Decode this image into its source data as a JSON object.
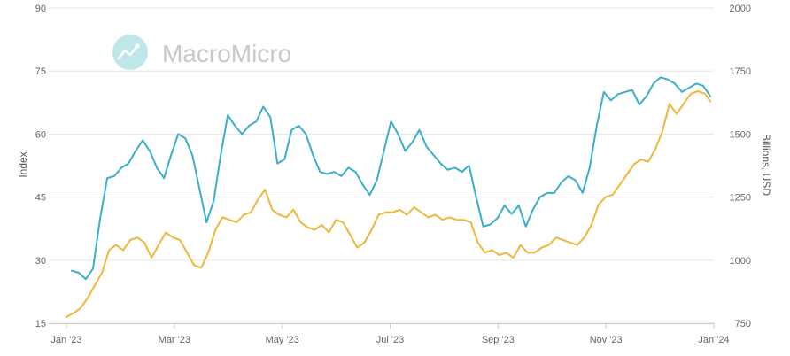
{
  "watermark": {
    "text": "MacroMicro",
    "icon": "macromicro-logo-icon"
  },
  "colors": {
    "series_a": "#3aaecd",
    "series_b": "#f0b63d",
    "grid": "#e6e6e6",
    "axis": "#cccccc",
    "watermark_circle": "#bfe7ea"
  },
  "chart_data": {
    "type": "line",
    "x_ticks": [
      "Jan '23",
      "Mar '23",
      "May '23",
      "Jul '23",
      "Sep '23",
      "Nov '23",
      "Jan '24"
    ],
    "xlim": [
      "2023-01-01",
      "2024-01-01"
    ],
    "y_left": {
      "label": "Index",
      "ticks": [
        15,
        30,
        45,
        60,
        75,
        90
      ],
      "ylim": [
        15,
        90
      ]
    },
    "y_right": {
      "label": "Billions, USD",
      "ticks": [
        750,
        1000,
        1250,
        1500,
        1750,
        2000
      ],
      "ylim": [
        750,
        2000
      ]
    },
    "grid": true,
    "series": [
      {
        "axis": "left",
        "color": "#3aaecd",
        "points": [
          [
            "2023-01-04",
            27.5
          ],
          [
            "2023-01-08",
            27
          ],
          [
            "2023-01-12",
            25.5
          ],
          [
            "2023-01-16",
            28
          ],
          [
            "2023-01-20",
            40
          ],
          [
            "2023-01-24",
            49.5
          ],
          [
            "2023-01-28",
            50
          ],
          [
            "2023-02-01",
            52
          ],
          [
            "2023-02-05",
            53
          ],
          [
            "2023-02-09",
            56
          ],
          [
            "2023-02-13",
            58.5
          ],
          [
            "2023-02-17",
            56
          ],
          [
            "2023-02-21",
            52
          ],
          [
            "2023-02-25",
            49.5
          ],
          [
            "2023-03-01",
            55
          ],
          [
            "2023-03-05",
            60
          ],
          [
            "2023-03-09",
            59
          ],
          [
            "2023-03-13",
            55
          ],
          [
            "2023-03-17",
            47
          ],
          [
            "2023-03-21",
            39
          ],
          [
            "2023-03-25",
            44
          ],
          [
            "2023-03-29",
            55
          ],
          [
            "2023-04-02",
            64.5
          ],
          [
            "2023-04-06",
            62
          ],
          [
            "2023-04-10",
            60
          ],
          [
            "2023-04-14",
            62
          ],
          [
            "2023-04-18",
            63
          ],
          [
            "2023-04-22",
            66.5
          ],
          [
            "2023-04-26",
            64
          ],
          [
            "2023-04-30",
            53
          ],
          [
            "2023-05-04",
            54
          ],
          [
            "2023-05-08",
            61
          ],
          [
            "2023-05-12",
            62
          ],
          [
            "2023-05-16",
            60
          ],
          [
            "2023-05-20",
            55
          ],
          [
            "2023-05-24",
            51
          ],
          [
            "2023-05-28",
            50.5
          ],
          [
            "2023-06-01",
            51
          ],
          [
            "2023-06-05",
            50
          ],
          [
            "2023-06-09",
            52
          ],
          [
            "2023-06-13",
            51
          ],
          [
            "2023-06-17",
            48
          ],
          [
            "2023-06-21",
            45.5
          ],
          [
            "2023-06-25",
            49
          ],
          [
            "2023-06-29",
            56
          ],
          [
            "2023-07-03",
            63
          ],
          [
            "2023-07-07",
            60
          ],
          [
            "2023-07-11",
            56
          ],
          [
            "2023-07-15",
            58
          ],
          [
            "2023-07-19",
            61
          ],
          [
            "2023-07-23",
            57
          ],
          [
            "2023-07-27",
            55
          ],
          [
            "2023-07-31",
            53
          ],
          [
            "2023-08-04",
            51.5
          ],
          [
            "2023-08-08",
            52
          ],
          [
            "2023-08-12",
            51
          ],
          [
            "2023-08-16",
            52.5
          ],
          [
            "2023-08-20",
            45
          ],
          [
            "2023-08-24",
            38
          ],
          [
            "2023-08-28",
            38.5
          ],
          [
            "2023-09-01",
            40
          ],
          [
            "2023-09-05",
            43
          ],
          [
            "2023-09-09",
            41
          ],
          [
            "2023-09-13",
            43
          ],
          [
            "2023-09-17",
            38
          ],
          [
            "2023-09-21",
            42
          ],
          [
            "2023-09-25",
            45
          ],
          [
            "2023-09-29",
            46
          ],
          [
            "2023-10-03",
            46
          ],
          [
            "2023-10-07",
            48.5
          ],
          [
            "2023-10-11",
            50
          ],
          [
            "2023-10-15",
            49
          ],
          [
            "2023-10-19",
            46
          ],
          [
            "2023-10-23",
            52
          ],
          [
            "2023-10-27",
            62
          ],
          [
            "2023-10-31",
            70
          ],
          [
            "2023-11-04",
            68
          ],
          [
            "2023-11-08",
            69.5
          ],
          [
            "2023-11-12",
            70
          ],
          [
            "2023-11-16",
            70.5
          ],
          [
            "2023-11-20",
            67
          ],
          [
            "2023-11-24",
            69
          ],
          [
            "2023-11-28",
            72
          ],
          [
            "2023-12-02",
            73.5
          ],
          [
            "2023-12-06",
            73
          ],
          [
            "2023-12-10",
            72
          ],
          [
            "2023-12-14",
            70
          ],
          [
            "2023-12-18",
            71
          ],
          [
            "2023-12-22",
            72
          ],
          [
            "2023-12-26",
            71.5
          ],
          [
            "2023-12-30",
            69
          ]
        ]
      },
      {
        "axis": "right",
        "color": "#f0b63d",
        "points": [
          [
            "2023-01-01",
            775
          ],
          [
            "2023-01-05",
            790
          ],
          [
            "2023-01-09",
            810
          ],
          [
            "2023-01-13",
            850
          ],
          [
            "2023-01-17",
            900
          ],
          [
            "2023-01-21",
            950
          ],
          [
            "2023-01-25",
            1040
          ],
          [
            "2023-01-29",
            1060
          ],
          [
            "2023-02-02",
            1040
          ],
          [
            "2023-02-06",
            1080
          ],
          [
            "2023-02-10",
            1090
          ],
          [
            "2023-02-14",
            1070
          ],
          [
            "2023-02-18",
            1010
          ],
          [
            "2023-02-22",
            1060
          ],
          [
            "2023-02-26",
            1110
          ],
          [
            "2023-03-02",
            1090
          ],
          [
            "2023-03-06",
            1080
          ],
          [
            "2023-03-10",
            1030
          ],
          [
            "2023-03-14",
            980
          ],
          [
            "2023-03-18",
            970
          ],
          [
            "2023-03-22",
            1030
          ],
          [
            "2023-03-26",
            1120
          ],
          [
            "2023-03-30",
            1170
          ],
          [
            "2023-04-03",
            1160
          ],
          [
            "2023-04-07",
            1150
          ],
          [
            "2023-04-11",
            1180
          ],
          [
            "2023-04-15",
            1190
          ],
          [
            "2023-04-19",
            1240
          ],
          [
            "2023-04-23",
            1280
          ],
          [
            "2023-04-27",
            1200
          ],
          [
            "2023-05-01",
            1180
          ],
          [
            "2023-05-05",
            1170
          ],
          [
            "2023-05-09",
            1200
          ],
          [
            "2023-05-13",
            1150
          ],
          [
            "2023-05-17",
            1130
          ],
          [
            "2023-05-21",
            1120
          ],
          [
            "2023-05-25",
            1140
          ],
          [
            "2023-05-29",
            1110
          ],
          [
            "2023-06-02",
            1160
          ],
          [
            "2023-06-06",
            1150
          ],
          [
            "2023-06-10",
            1100
          ],
          [
            "2023-06-14",
            1050
          ],
          [
            "2023-06-18",
            1070
          ],
          [
            "2023-06-22",
            1120
          ],
          [
            "2023-06-26",
            1180
          ],
          [
            "2023-06-30",
            1190
          ],
          [
            "2023-07-04",
            1190
          ],
          [
            "2023-07-08",
            1200
          ],
          [
            "2023-07-12",
            1180
          ],
          [
            "2023-07-16",
            1210
          ],
          [
            "2023-07-20",
            1190
          ],
          [
            "2023-07-24",
            1170
          ],
          [
            "2023-07-28",
            1180
          ],
          [
            "2023-08-01",
            1160
          ],
          [
            "2023-08-05",
            1170
          ],
          [
            "2023-08-09",
            1160
          ],
          [
            "2023-08-13",
            1160
          ],
          [
            "2023-08-17",
            1150
          ],
          [
            "2023-08-21",
            1070
          ],
          [
            "2023-08-25",
            1030
          ],
          [
            "2023-08-29",
            1040
          ],
          [
            "2023-09-02",
            1020
          ],
          [
            "2023-09-06",
            1030
          ],
          [
            "2023-09-10",
            1010
          ],
          [
            "2023-09-14",
            1060
          ],
          [
            "2023-09-18",
            1030
          ],
          [
            "2023-09-22",
            1030
          ],
          [
            "2023-09-26",
            1050
          ],
          [
            "2023-09-30",
            1060
          ],
          [
            "2023-10-04",
            1090
          ],
          [
            "2023-10-08",
            1080
          ],
          [
            "2023-10-12",
            1070
          ],
          [
            "2023-10-16",
            1060
          ],
          [
            "2023-10-20",
            1090
          ],
          [
            "2023-10-24",
            1140
          ],
          [
            "2023-10-28",
            1220
          ],
          [
            "2023-11-01",
            1250
          ],
          [
            "2023-11-05",
            1260
          ],
          [
            "2023-11-09",
            1300
          ],
          [
            "2023-11-13",
            1340
          ],
          [
            "2023-11-17",
            1380
          ],
          [
            "2023-11-21",
            1400
          ],
          [
            "2023-11-25",
            1390
          ],
          [
            "2023-11-29",
            1440
          ],
          [
            "2023-12-03",
            1510
          ],
          [
            "2023-12-07",
            1620
          ],
          [
            "2023-12-11",
            1580
          ],
          [
            "2023-12-15",
            1620
          ],
          [
            "2023-12-19",
            1660
          ],
          [
            "2023-12-23",
            1670
          ],
          [
            "2023-12-27",
            1660
          ],
          [
            "2023-12-30",
            1630
          ]
        ]
      }
    ]
  }
}
